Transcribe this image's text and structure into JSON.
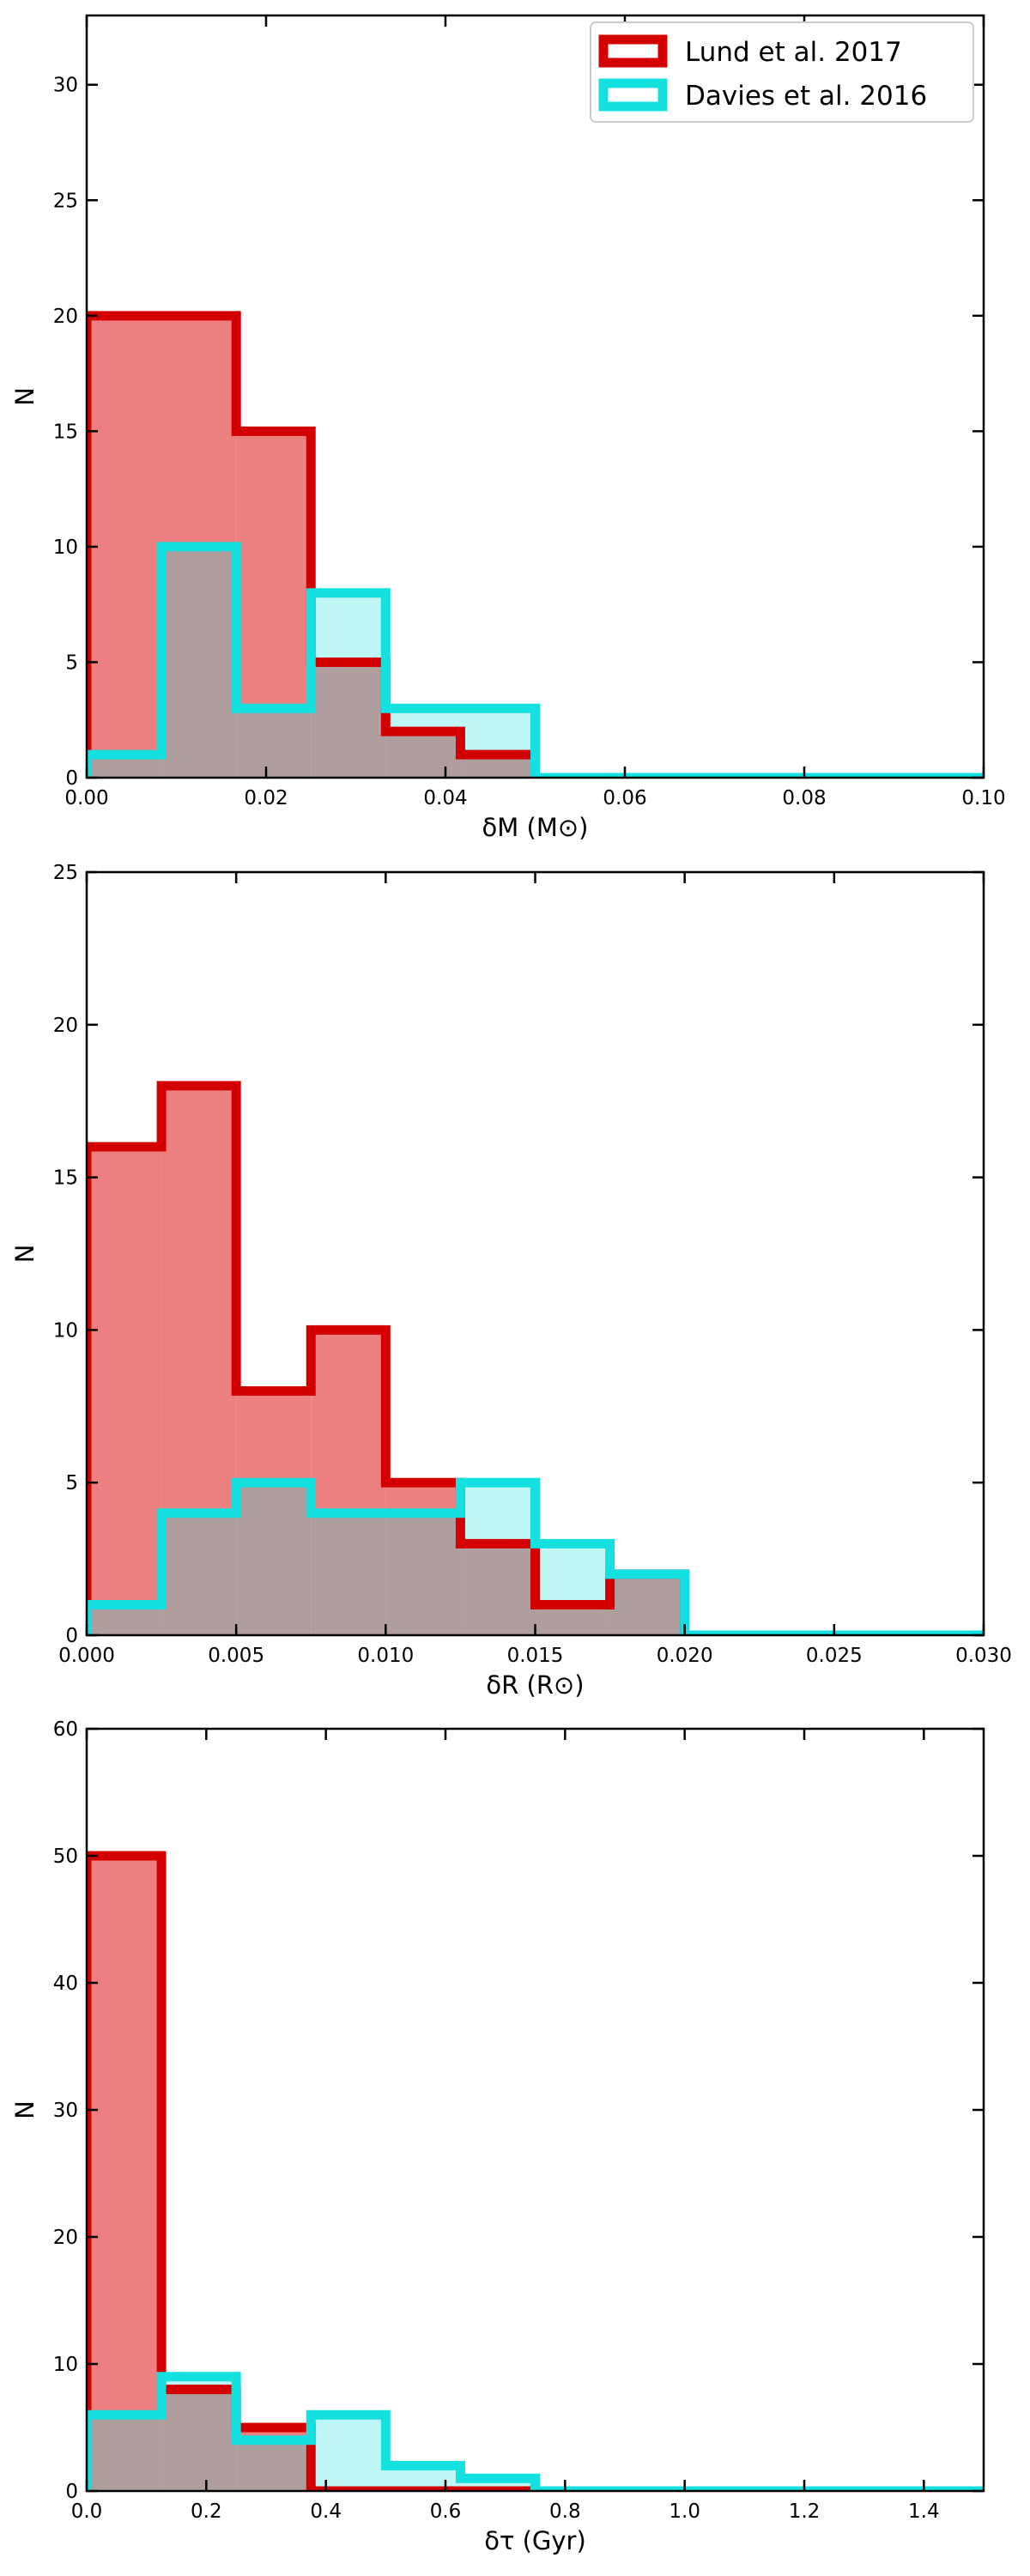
{
  "colors": {
    "lund_edge": "#d40000",
    "lund_fill": "#ec8080",
    "davies_edge": "#14e0e0",
    "davies_fill": "#bff6f6",
    "overlap_fill": "#b09e9e"
  },
  "legend": {
    "placement": "top-right",
    "entries": [
      "Lund et al. 2017",
      "Davies et al. 2016"
    ]
  },
  "chart_data": [
    {
      "type": "histogram",
      "xlabel": "δM (M⊙)",
      "ylabel": "N",
      "xlim": [
        0,
        0.1
      ],
      "ylim": [
        0,
        33
      ],
      "xticks": [
        "0.00",
        "0.02",
        "0.04",
        "0.06",
        "0.08",
        "0.10"
      ],
      "yticks": [
        "0",
        "5",
        "10",
        "15",
        "20",
        "25",
        "30"
      ],
      "bin_edges": [
        0,
        0.00833,
        0.01667,
        0.025,
        0.03333,
        0.04167,
        0.05,
        0.1
      ],
      "series": [
        {
          "name": "Lund et al. 2017",
          "values": [
            20,
            20,
            15,
            5,
            2,
            1,
            0
          ]
        },
        {
          "name": "Davies et al. 2016",
          "values": [
            1,
            10,
            3,
            8,
            3,
            3,
            0
          ]
        }
      ]
    },
    {
      "type": "histogram",
      "xlabel": "δR (R⊙)",
      "ylabel": "N",
      "xlim": [
        0,
        0.03
      ],
      "ylim": [
        0,
        25
      ],
      "xticks": [
        "0.000",
        "0.005",
        "0.010",
        "0.015",
        "0.020",
        "0.025",
        "0.030"
      ],
      "yticks": [
        "0",
        "5",
        "10",
        "15",
        "20",
        "25"
      ],
      "bin_edges": [
        0,
        0.0025,
        0.005,
        0.0075,
        0.01,
        0.0125,
        0.015,
        0.0175,
        0.02,
        0.03
      ],
      "series": [
        {
          "name": "Lund et al. 2017",
          "values": [
            16,
            18,
            8,
            10,
            5,
            3,
            1,
            2,
            0
          ]
        },
        {
          "name": "Davies et al. 2016",
          "values": [
            1,
            4,
            5,
            4,
            4,
            5,
            3,
            2,
            0
          ]
        }
      ]
    },
    {
      "type": "histogram",
      "xlabel": "δτ (Gyr)",
      "ylabel": "N",
      "xlim": [
        0,
        1.5
      ],
      "ylim": [
        0,
        60
      ],
      "xticks": [
        "0.0",
        "0.2",
        "0.4",
        "0.6",
        "0.8",
        "1.0",
        "1.2",
        "1.4"
      ],
      "yticks": [
        "0",
        "10",
        "20",
        "30",
        "40",
        "50",
        "60"
      ],
      "bin_edges": [
        0,
        0.125,
        0.25,
        0.375,
        0.5,
        0.625,
        0.75,
        1.5
      ],
      "series": [
        {
          "name": "Lund et al. 2017",
          "values": [
            50,
            8,
            5,
            0,
            0,
            0,
            0
          ]
        },
        {
          "name": "Davies et al. 2016",
          "values": [
            6,
            9,
            4,
            6,
            2,
            1,
            0
          ]
        }
      ]
    }
  ]
}
